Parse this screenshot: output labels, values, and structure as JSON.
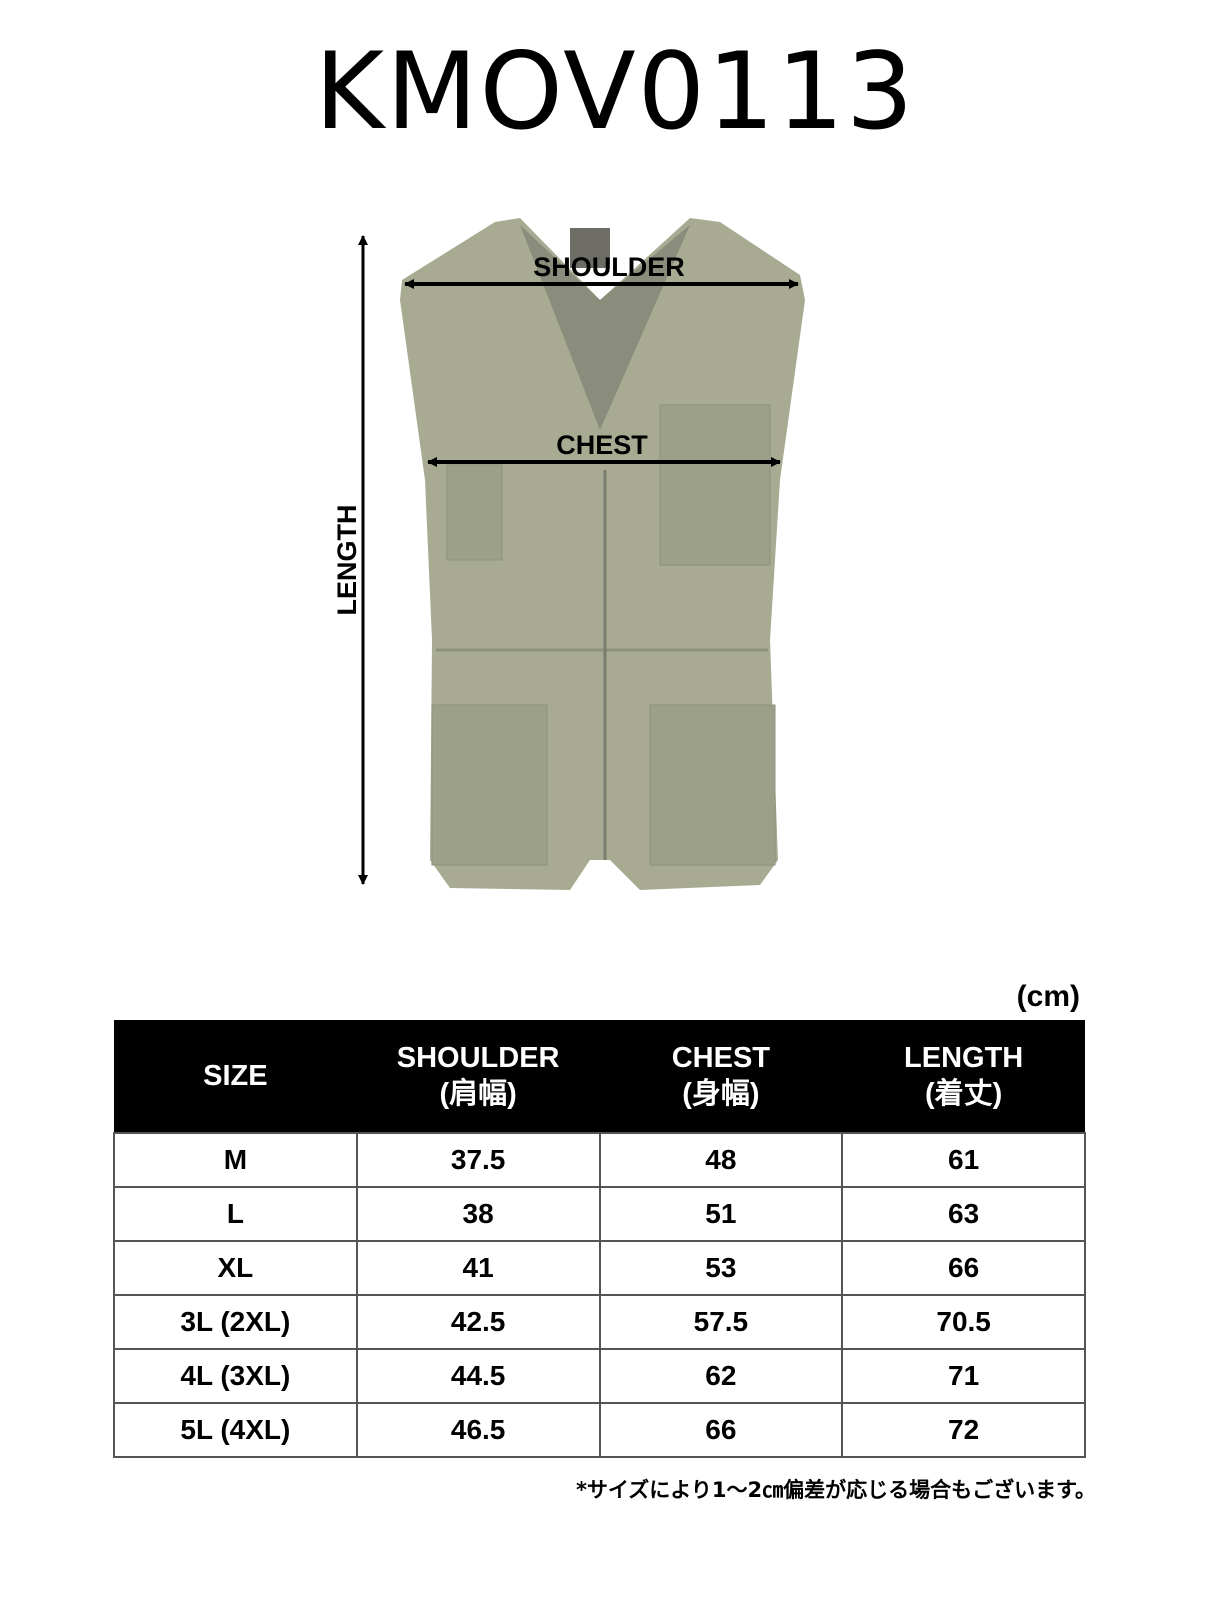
{
  "title": "KMOV0113",
  "diagram": {
    "labels": {
      "shoulder": "SHOULDER",
      "chest": "CHEST",
      "length": "LENGTH"
    },
    "garment_color": "#a8ab92"
  },
  "unit": "(cm)",
  "table": {
    "headers": [
      {
        "label": "SIZE",
        "sub": ""
      },
      {
        "label": "SHOULDER",
        "sub": "(肩幅)"
      },
      {
        "label": "CHEST",
        "sub": "(身幅)"
      },
      {
        "label": "LENGTH",
        "sub": "(着丈)"
      }
    ],
    "rows": [
      [
        "M",
        "37.5",
        "48",
        "61"
      ],
      [
        "L",
        "38",
        "51",
        "63"
      ],
      [
        "XL",
        "41",
        "53",
        "66"
      ],
      [
        "3L (2XL)",
        "42.5",
        "57.5",
        "70.5"
      ],
      [
        "4L (3XL)",
        "44.5",
        "62",
        "71"
      ],
      [
        "5L (4XL)",
        "46.5",
        "66",
        "72"
      ]
    ]
  },
  "note": "*サイズにより1～2㎝偏差が応じる場合もございます。"
}
